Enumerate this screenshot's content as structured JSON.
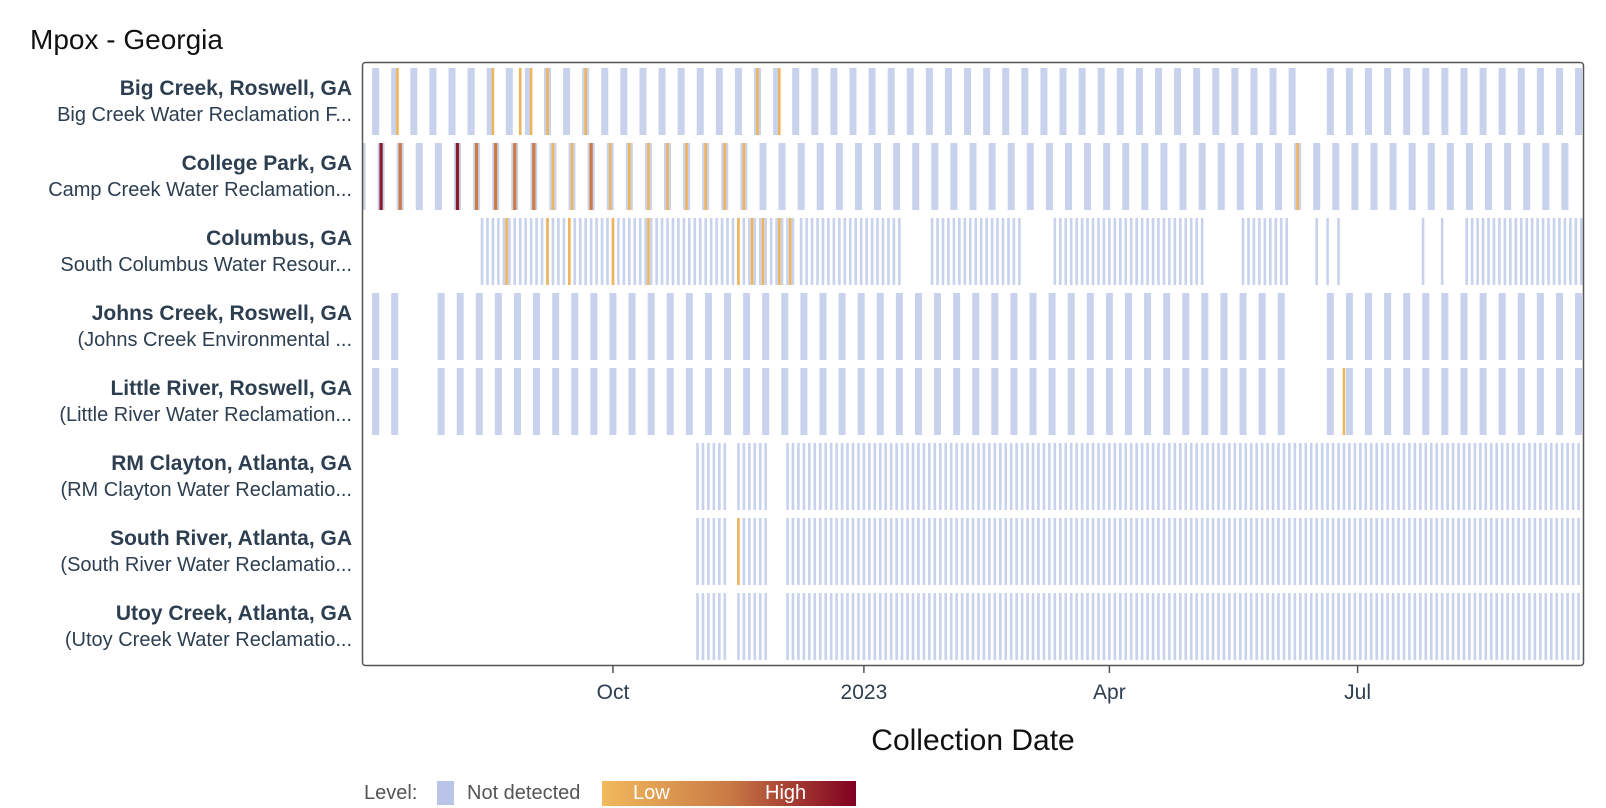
{
  "chart_data": {
    "type": "heatmap",
    "title": "Mpox - Georgia",
    "xlabel": "Collection Date",
    "x_range": [
      "2022-07-01",
      "2023-09-22"
    ],
    "x_ticks": [
      {
        "date": "2022-10-01",
        "label": "Oct"
      },
      {
        "date": "2023-01-01",
        "label": "2023"
      },
      {
        "date": "2023-04-01",
        "label": "Apr"
      },
      {
        "date": "2023-07-01",
        "label": "Jul"
      }
    ],
    "legend": {
      "label": "Level:",
      "not_detected": "Not detected",
      "low": "Low",
      "high": "High",
      "not_detected_color": "#b9c4e6",
      "gradient_start": "#f2b95c",
      "gradient_mid": "#c97a45",
      "gradient_end": "#800020",
      "placement": "bottom-left"
    },
    "colors": {
      "not_detected": "#c8d2ec",
      "low": "#f0b45a",
      "medium": "#cf7a40",
      "high": "#8b1a2b"
    },
    "series": [
      {
        "site": "Big Creek, Roswell, GA",
        "plant": "Big Creek Water Reclamation F...",
        "frequency": "weekly",
        "segments": [
          {
            "start": "2022-07-06",
            "end": "2022-08-10",
            "step_days": 7
          },
          {
            "start": "2022-08-10",
            "end": "2023-06-07",
            "step_days": 7
          },
          {
            "start": "2023-06-21",
            "end": "2023-09-20",
            "step_days": 7
          }
        ],
        "detections": [
          {
            "date": "2022-07-14",
            "level": "low"
          },
          {
            "date": "2022-08-18",
            "level": "low"
          },
          {
            "date": "2022-08-28",
            "level": "low"
          },
          {
            "date": "2022-09-01",
            "level": "low"
          },
          {
            "date": "2022-09-07",
            "level": "low"
          },
          {
            "date": "2022-09-21",
            "level": "low"
          },
          {
            "date": "2022-11-23",
            "level": "low"
          },
          {
            "date": "2022-12-01",
            "level": "low"
          }
        ]
      },
      {
        "site": "College Park, GA",
        "plant": "Camp Creek Water Reclamation...",
        "frequency": "weekly",
        "segments": [
          {
            "start": "2022-07-01",
            "end": "2023-09-20",
            "step_days": 7
          }
        ],
        "detections": [
          {
            "date": "2022-07-01",
            "level": "low"
          },
          {
            "date": "2022-07-08",
            "level": "high"
          },
          {
            "date": "2022-07-15",
            "level": "medium"
          },
          {
            "date": "2022-08-05",
            "level": "high"
          },
          {
            "date": "2022-08-12",
            "level": "medium"
          },
          {
            "date": "2022-08-19",
            "level": "medium"
          },
          {
            "date": "2022-08-26",
            "level": "medium"
          },
          {
            "date": "2022-09-02",
            "level": "medium"
          },
          {
            "date": "2022-09-09",
            "level": "low"
          },
          {
            "date": "2022-09-16",
            "level": "low"
          },
          {
            "date": "2022-09-23",
            "level": "medium"
          },
          {
            "date": "2022-09-30",
            "level": "low"
          },
          {
            "date": "2022-10-07",
            "level": "low"
          },
          {
            "date": "2022-10-14",
            "level": "low"
          },
          {
            "date": "2022-10-21",
            "level": "low"
          },
          {
            "date": "2022-10-28",
            "level": "low"
          },
          {
            "date": "2022-11-04",
            "level": "low"
          },
          {
            "date": "2022-11-11",
            "level": "low"
          },
          {
            "date": "2022-11-18",
            "level": "low"
          },
          {
            "date": "2023-06-09",
            "level": "low"
          }
        ]
      },
      {
        "site": "Columbus, GA",
        "plant": "South Columbus Water Resour...",
        "frequency": "multiple per week",
        "segments": [
          {
            "start": "2022-08-14",
            "end": "2022-12-07",
            "step_days": 2
          },
          {
            "start": "2022-12-09",
            "end": "2023-01-15",
            "step_days": 2
          },
          {
            "start": "2023-01-26",
            "end": "2023-02-27",
            "step_days": 2
          },
          {
            "start": "2023-03-12",
            "end": "2023-05-05",
            "step_days": 2
          },
          {
            "start": "2023-05-20",
            "end": "2023-06-06",
            "step_days": 2
          },
          {
            "start": "2023-06-16",
            "end": "2023-06-25",
            "step_days": 4
          },
          {
            "start": "2023-07-25",
            "end": "2023-08-01",
            "step_days": 7
          },
          {
            "start": "2023-08-10",
            "end": "2023-09-22",
            "step_days": 2
          }
        ],
        "detections": [
          {
            "date": "2022-08-23",
            "level": "low"
          },
          {
            "date": "2022-09-07",
            "level": "low"
          },
          {
            "date": "2022-09-15",
            "level": "low"
          },
          {
            "date": "2022-10-01",
            "level": "low"
          },
          {
            "date": "2022-10-14",
            "level": "low"
          },
          {
            "date": "2022-11-16",
            "level": "low"
          },
          {
            "date": "2022-11-21",
            "level": "low"
          },
          {
            "date": "2022-11-25",
            "level": "low"
          },
          {
            "date": "2022-12-01",
            "level": "low"
          },
          {
            "date": "2022-12-05",
            "level": "low"
          }
        ]
      },
      {
        "site": "Johns Creek, Roswell, GA",
        "plant": "(Johns Creek Environmental ...",
        "frequency": "weekly",
        "segments": [
          {
            "start": "2022-07-06",
            "end": "2022-07-16",
            "step_days": 7
          },
          {
            "start": "2022-07-30",
            "end": "2023-06-07",
            "step_days": 7
          },
          {
            "start": "2023-06-21",
            "end": "2023-09-20",
            "step_days": 7
          }
        ],
        "detections": []
      },
      {
        "site": "Little River, Roswell, GA",
        "plant": "(Little River Water Reclamation...",
        "frequency": "weekly",
        "segments": [
          {
            "start": "2022-07-06",
            "end": "2022-07-16",
            "step_days": 7
          },
          {
            "start": "2022-07-30",
            "end": "2023-06-07",
            "step_days": 7
          },
          {
            "start": "2023-06-21",
            "end": "2023-09-20",
            "step_days": 7
          }
        ],
        "detections": [
          {
            "date": "2023-06-26",
            "level": "low"
          }
        ]
      },
      {
        "site": "RM Clayton, Atlanta, GA",
        "plant": "(RM Clayton Water Reclamatio...",
        "frequency": "multiple per week",
        "segments": [
          {
            "start": "2022-11-01",
            "end": "2022-11-12",
            "step_days": 2
          },
          {
            "start": "2022-11-16",
            "end": "2022-11-26",
            "step_days": 2
          },
          {
            "start": "2022-12-04",
            "end": "2023-09-22",
            "step_days": 2
          }
        ],
        "detections": []
      },
      {
        "site": "South River, Atlanta, GA",
        "plant": "(South River Water Reclamatio...",
        "frequency": "multiple per week",
        "segments": [
          {
            "start": "2022-11-01",
            "end": "2022-11-12",
            "step_days": 2
          },
          {
            "start": "2022-11-16",
            "end": "2022-11-26",
            "step_days": 2
          },
          {
            "start": "2022-12-04",
            "end": "2023-09-22",
            "step_days": 2
          }
        ],
        "detections": [
          {
            "date": "2022-11-16",
            "level": "low"
          }
        ]
      },
      {
        "site": "Utoy Creek, Atlanta, GA",
        "plant": "(Utoy Creek Water Reclamatio...",
        "frequency": "multiple per week",
        "segments": [
          {
            "start": "2022-11-01",
            "end": "2022-11-12",
            "step_days": 2
          },
          {
            "start": "2022-11-16",
            "end": "2022-11-26",
            "step_days": 2
          },
          {
            "start": "2022-12-04",
            "end": "2023-09-22",
            "step_days": 2
          }
        ],
        "detections": []
      }
    ]
  }
}
